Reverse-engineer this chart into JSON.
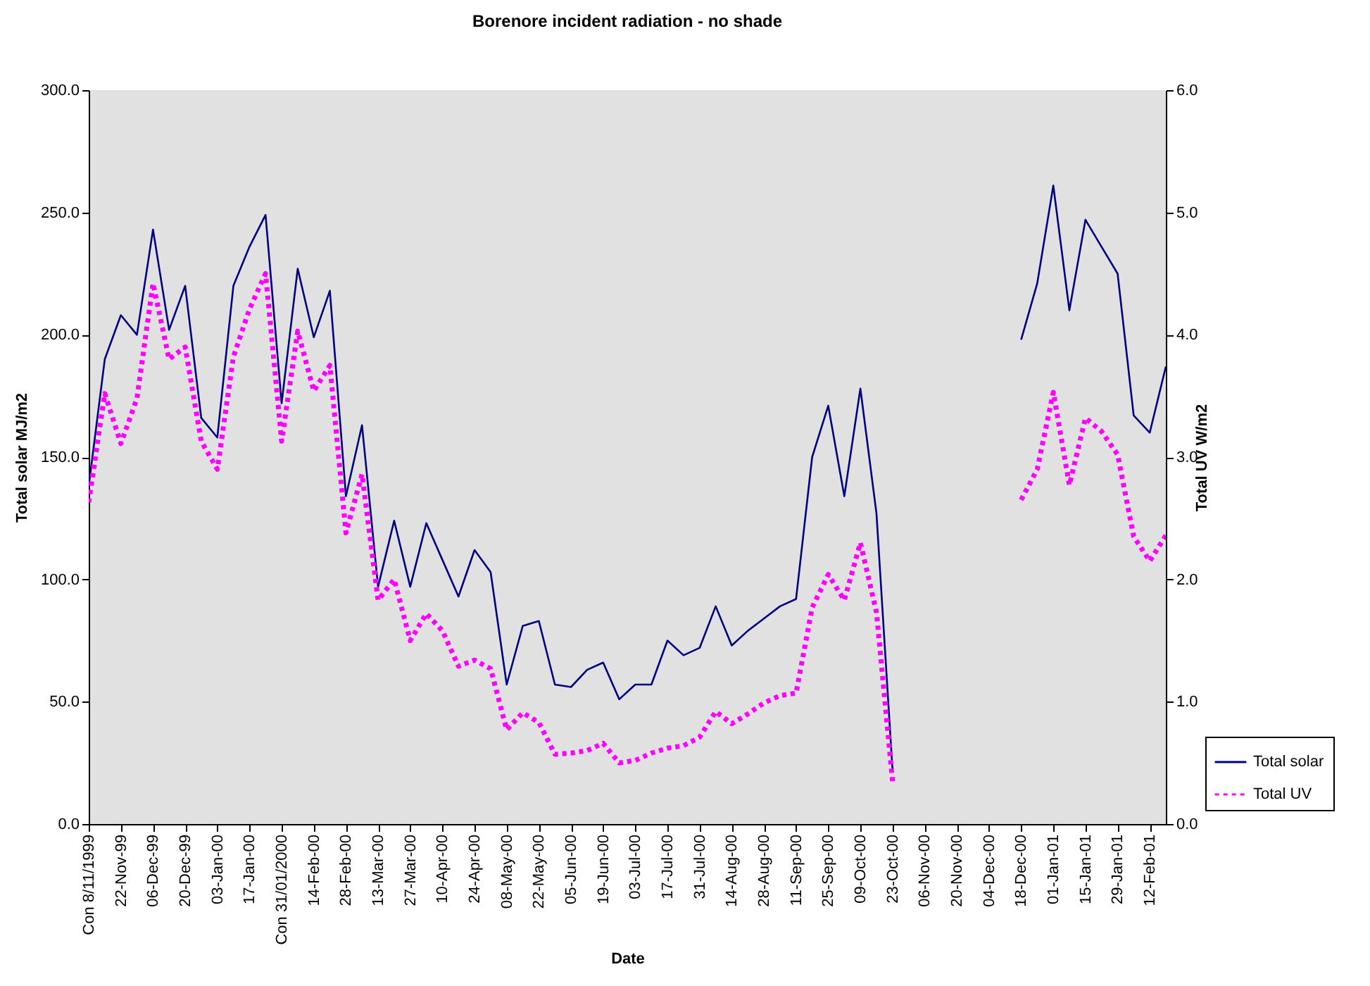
{
  "chart_data": {
    "type": "line",
    "title": "Borenore incident radiation - no shade",
    "xlabel": "Date",
    "ylabel": "Total solar MJ/m2",
    "y2label": "Total UV W/m2",
    "categories": [
      "Con 8/11/1999",
      null,
      "22-Nov-99",
      null,
      "06-Dec-99",
      null,
      "20-Dec-99",
      null,
      "03-Jan-00",
      null,
      "17-Jan-00",
      null,
      "Con 31/01/2000",
      null,
      "14-Feb-00",
      null,
      "28-Feb-00",
      null,
      "13-Mar-00",
      null,
      "27-Mar-00",
      null,
      "10-Apr-00",
      null,
      "24-Apr-00",
      null,
      "08-May-00",
      null,
      "22-May-00",
      null,
      "05-Jun-00",
      null,
      "19-Jun-00",
      null,
      "03-Jul-00",
      null,
      "17-Jul-00",
      null,
      "31-Jul-00",
      null,
      "14-Aug-00",
      null,
      "28-Aug-00",
      null,
      "11-Sep-00",
      null,
      "25-Sep-00",
      null,
      "09-Oct-00",
      null,
      "23-Oct-00",
      null,
      "06-Nov-00",
      null,
      "20-Nov-00",
      null,
      "04-Dec-00",
      null,
      "18-Dec-00",
      null,
      "01-Jan-01",
      null,
      "15-Jan-01",
      null,
      "29-Jan-01",
      null,
      "12-Feb-01",
      null
    ],
    "series": [
      {
        "name": "Total solar",
        "color": "#000080",
        "line_style": "solid",
        "values": [
          138,
          190,
          208,
          200,
          243,
          202,
          220,
          166,
          158,
          220,
          236,
          249,
          172,
          227,
          199,
          218,
          134,
          163,
          97,
          124,
          97,
          123,
          108,
          93,
          112,
          103,
          57,
          81,
          83,
          57,
          56,
          63,
          66,
          51,
          57,
          57,
          75,
          69,
          72,
          89,
          73,
          79,
          84,
          89,
          92,
          150,
          171,
          134,
          178,
          127,
          22,
          null,
          null,
          null,
          null,
          null,
          null,
          null,
          198,
          221,
          261,
          210,
          247,
          236,
          225,
          167,
          160,
          187
        ]
      },
      {
        "name": "Total UV",
        "color": "#ff00ff",
        "line_style": "dotted",
        "axis": "y2",
        "values": [
          2.63,
          3.52,
          3.11,
          3.48,
          4.42,
          3.8,
          3.9,
          3.13,
          2.9,
          3.82,
          4.21,
          4.5,
          3.13,
          4.03,
          3.54,
          3.75,
          2.38,
          2.86,
          1.83,
          2.0,
          1.5,
          1.72,
          1.58,
          1.29,
          1.34,
          1.27,
          0.77,
          0.91,
          0.83,
          0.57,
          0.58,
          0.6,
          0.66,
          0.5,
          0.52,
          0.58,
          0.62,
          0.64,
          0.71,
          0.92,
          0.82,
          0.9,
          0.99,
          1.05,
          1.07,
          1.77,
          2.04,
          1.83,
          2.3,
          1.73,
          0.35,
          null,
          null,
          null,
          null,
          null,
          null,
          null,
          2.65,
          2.9,
          3.53,
          2.77,
          3.32,
          3.21,
          3.02,
          2.35,
          2.15,
          2.36
        ]
      }
    ],
    "ylim": [
      0,
      300
    ],
    "yticks": [
      {
        "value": 0,
        "label": "0.0"
      },
      {
        "value": 50,
        "label": "50.0"
      },
      {
        "value": 100,
        "label": "100.0"
      },
      {
        "value": 150,
        "label": "150.0"
      },
      {
        "value": 200,
        "label": "200.0"
      },
      {
        "value": 250,
        "label": "250.0"
      },
      {
        "value": 300,
        "label": "300.0"
      }
    ],
    "y2lim": [
      0,
      6
    ],
    "y2ticks": [
      {
        "value": 0,
        "label": "0.0"
      },
      {
        "value": 1,
        "label": "1.0"
      },
      {
        "value": 2,
        "label": "2.0"
      },
      {
        "value": 3,
        "label": "3.0"
      },
      {
        "value": 4,
        "label": "4.0"
      },
      {
        "value": 5,
        "label": "5.0"
      },
      {
        "value": 6,
        "label": "6.0"
      }
    ],
    "legend": "bottom right"
  }
}
